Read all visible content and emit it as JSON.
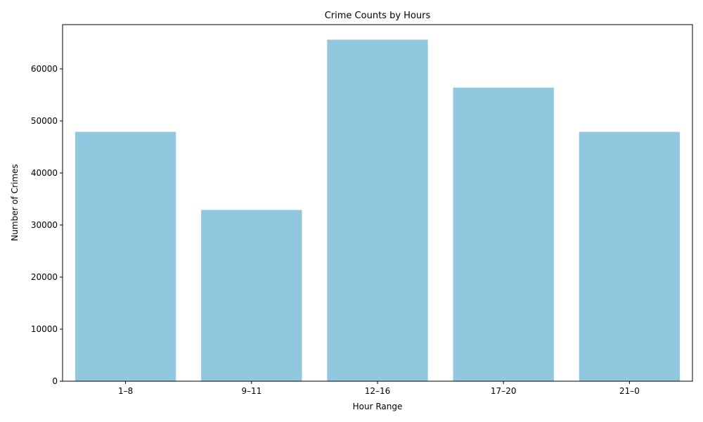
{
  "chart_data": {
    "type": "bar",
    "title": "Crime Counts by Hours",
    "xlabel": "Hour Range",
    "ylabel": "Number of Crimes",
    "categories": [
      "1–8",
      "9–11",
      "12–16",
      "17–20",
      "21–0"
    ],
    "values": [
      47900,
      32900,
      65600,
      56400,
      47900
    ],
    "ylim": [
      0,
      68500
    ],
    "yticks": [
      0,
      10000,
      20000,
      30000,
      40000,
      50000,
      60000
    ],
    "bar_color": "#92c8df",
    "grid": false,
    "legend": "none"
  }
}
